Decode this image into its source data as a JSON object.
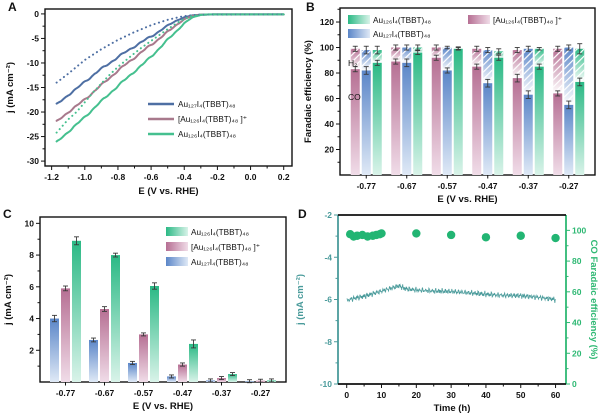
{
  "palette": {
    "blue_line": "#4e6fa3",
    "mauve_line": "#a8798c",
    "green_line": "#45c08f",
    "blue_bar": "#5b86c8",
    "blue_bar_light": "#dfe9f6",
    "mauve_bar": "#b66f93",
    "mauve_bar_light": "#f0dce8",
    "green_bar": "#2bb985",
    "green_bar_light": "#d9f3e9",
    "teal": "#4a9b9b",
    "dot_green": "#22b573",
    "right_axis_green": "#2eb873",
    "axis": "#111111",
    "error_bar": "#3a3a3a"
  },
  "chart_data": [
    {
      "panel": "A",
      "type": "line",
      "xlabel": "E (V vs. RHE)",
      "ylabel": "j (mA cm⁻²)",
      "xlim": [
        -1.24,
        0.25
      ],
      "ylim": [
        -31,
        1
      ],
      "xticks": [
        -1.2,
        -1.0,
        -0.8,
        -0.6,
        -0.4,
        -0.2,
        0.0,
        0.2
      ],
      "yticks": [
        0,
        -5,
        -10,
        -15,
        -20,
        -25,
        -30
      ],
      "legend_position": "lower right",
      "series": [
        {
          "name": "Au₁₂₇I₄(TBBT)₄₈",
          "color": "blue_line",
          "style": "solid",
          "legend": true,
          "points": [
            [
              -1.17,
              -18.5
            ],
            [
              -1.1,
              -16.5
            ],
            [
              -1.05,
              -15.3
            ],
            [
              -1.0,
              -13.8
            ],
            [
              -0.95,
              -12.5
            ],
            [
              -0.9,
              -11.2
            ],
            [
              -0.85,
              -10.0
            ],
            [
              -0.8,
              -8.8
            ],
            [
              -0.75,
              -7.7
            ],
            [
              -0.7,
              -6.6
            ],
            [
              -0.65,
              -5.6
            ],
            [
              -0.6,
              -4.6
            ],
            [
              -0.55,
              -3.5
            ],
            [
              -0.5,
              -2.4
            ],
            [
              -0.45,
              -1.4
            ],
            [
              -0.4,
              -0.7
            ],
            [
              -0.35,
              -0.3
            ],
            [
              -0.3,
              -0.15
            ],
            [
              -0.2,
              -0.1
            ],
            [
              0.2,
              -0.1
            ]
          ]
        },
        {
          "name": "[Au₁₂₆I₄(TBBT)₄₈ ]⁺",
          "color": "mauve_line",
          "style": "solid",
          "legend": true,
          "points": [
            [
              -1.17,
              -22.0
            ],
            [
              -1.1,
              -20.0
            ],
            [
              -1.05,
              -18.8
            ],
            [
              -1.0,
              -17.4
            ],
            [
              -0.95,
              -16.0
            ],
            [
              -0.9,
              -14.5
            ],
            [
              -0.85,
              -13.0
            ],
            [
              -0.8,
              -11.6
            ],
            [
              -0.75,
              -10.2
            ],
            [
              -0.7,
              -8.9
            ],
            [
              -0.65,
              -7.6
            ],
            [
              -0.6,
              -6.3
            ],
            [
              -0.55,
              -5.0
            ],
            [
              -0.5,
              -3.7
            ],
            [
              -0.45,
              -2.3
            ],
            [
              -0.4,
              -1.1
            ],
            [
              -0.35,
              -0.4
            ],
            [
              -0.3,
              -0.15
            ],
            [
              -0.2,
              -0.1
            ],
            [
              0.2,
              -0.1
            ]
          ]
        },
        {
          "name": "Au₁₂₆I₄(TBBT)₄₈",
          "color": "green_line",
          "style": "solid",
          "legend": true,
          "points": [
            [
              -1.17,
              -26.2
            ],
            [
              -1.1,
              -24.0
            ],
            [
              -1.05,
              -22.6
            ],
            [
              -1.0,
              -21.0
            ],
            [
              -0.95,
              -19.4
            ],
            [
              -0.9,
              -17.8
            ],
            [
              -0.85,
              -16.2
            ],
            [
              -0.8,
              -14.7
            ],
            [
              -0.75,
              -13.2
            ],
            [
              -0.7,
              -11.7
            ],
            [
              -0.65,
              -10.3
            ],
            [
              -0.6,
              -8.7
            ],
            [
              -0.55,
              -7.0
            ],
            [
              -0.5,
              -5.3
            ],
            [
              -0.45,
              -3.6
            ],
            [
              -0.4,
              -1.9
            ],
            [
              -0.35,
              -0.7
            ],
            [
              -0.3,
              -0.2
            ],
            [
              -0.25,
              -0.1
            ],
            [
              0.2,
              -0.1
            ]
          ]
        },
        {
          "name": "Au₁₂₇I₄(TBBT)₄₈ dotted",
          "color": "blue_line",
          "style": "dotted",
          "legend": false,
          "points": [
            [
              -1.17,
              -14.0
            ],
            [
              -1.1,
              -12.2
            ],
            [
              -1.0,
              -9.4
            ],
            [
              -0.9,
              -7.2
            ],
            [
              -0.8,
              -5.3
            ],
            [
              -0.7,
              -3.7
            ],
            [
              -0.6,
              -2.3
            ],
            [
              -0.5,
              -1.2
            ],
            [
              -0.45,
              -0.8
            ],
            [
              -0.4,
              -0.45
            ],
            [
              -0.35,
              -0.25
            ],
            [
              -0.3,
              -0.15
            ],
            [
              0.2,
              -0.1
            ]
          ]
        },
        {
          "name": "Au₁₂₆I₄(TBBT)₄₈ dotted",
          "color": "green_line",
          "style": "dotted",
          "legend": false,
          "points": [
            [
              -1.17,
              -24.2
            ],
            [
              -1.1,
              -21.5
            ],
            [
              -1.05,
              -20.0
            ],
            [
              -1.0,
              -18.0
            ],
            [
              -0.95,
              -16.0
            ],
            [
              -0.9,
              -14.2
            ],
            [
              -0.85,
              -12.4
            ],
            [
              -0.8,
              -10.8
            ],
            [
              -0.75,
              -9.4
            ],
            [
              -0.7,
              -8.0
            ],
            [
              -0.65,
              -6.7
            ],
            [
              -0.6,
              -5.5
            ],
            [
              -0.55,
              -4.3
            ],
            [
              -0.5,
              -3.1
            ],
            [
              -0.45,
              -2.0
            ],
            [
              -0.4,
              -1.0
            ],
            [
              -0.35,
              -0.4
            ],
            [
              -0.3,
              -0.15
            ],
            [
              0.2,
              -0.1
            ]
          ]
        }
      ]
    },
    {
      "panel": "B",
      "type": "stacked_bar",
      "xlabel": "E (V vs. RHE)",
      "ylabel": "Faradaic efficiency (%)",
      "categories": [
        "-0.77",
        "-0.67",
        "-0.57",
        "-0.47",
        "-0.37",
        "-0.27"
      ],
      "ylim": [
        0,
        131
      ],
      "yticks": [
        20,
        40,
        60,
        80,
        100,
        120
      ],
      "annotations": [
        {
          "text": "H₂",
          "value": 88
        },
        {
          "text": "CO",
          "value": 61
        }
      ],
      "bar_order": [
        "mauve",
        "blue",
        "green"
      ],
      "series": [
        {
          "name": "[Au₁₂₆I₄(TBBT)₄₈ ]⁺",
          "key": "mauve",
          "co": [
            83,
            89,
            92,
            85,
            76,
            64
          ],
          "co_err": [
            2,
            2,
            2,
            2,
            3,
            2
          ],
          "total": [
            99,
            100,
            100,
            99,
            98,
            99
          ],
          "total_err": [
            2,
            2,
            2,
            2,
            2,
            2
          ]
        },
        {
          "name": "Au₁₂₇I₄(TBBT)₄₈",
          "key": "blue",
          "co": [
            82,
            88,
            82,
            72,
            63,
            55
          ],
          "co_err": [
            3,
            3,
            2,
            3,
            3,
            3
          ],
          "total": [
            98,
            100,
            100,
            98,
            99,
            100
          ],
          "total_err": [
            3,
            2,
            1,
            2,
            2,
            2
          ]
        },
        {
          "name": "Au₁₂₆I₄(TBBT)₄₈",
          "key": "green",
          "co": [
            88,
            96,
            99,
            92,
            85,
            73
          ],
          "co_err": [
            2,
            1.5,
            1,
            2,
            2,
            3
          ],
          "total": [
            98,
            100,
            99.5,
            97,
            99,
            99
          ],
          "total_err": [
            3,
            2,
            1,
            2,
            1,
            4
          ]
        }
      ],
      "legend": [
        {
          "name": "Au₁₂₆I₄(TBBT)₄₈",
          "key": "green",
          "row": 0,
          "col": 0
        },
        {
          "name": "[Au₁₂₆I₄(TBBT)₄₈ ]⁺",
          "key": "mauve",
          "row": 0,
          "col": 1
        },
        {
          "name": "Au₁₂₇I₄(TBBT)₄₈",
          "key": "blue",
          "row": 1,
          "col": 0
        }
      ]
    },
    {
      "panel": "C",
      "type": "grouped_bar",
      "xlabel": "E (V vs. RHE)",
      "ylabel": "j (mA cm⁻²)",
      "categories": [
        "-0.77",
        "-0.67",
        "-0.57",
        "-0.47",
        "-0.37",
        "-0.27"
      ],
      "ylim": [
        0,
        10.4
      ],
      "yticks": [
        2,
        4,
        6,
        8,
        10
      ],
      "bar_order": [
        "blue",
        "mauve",
        "green"
      ],
      "series": [
        {
          "name": "Au₁₂₇I₄(TBBT)₄₈",
          "key": "blue",
          "values": [
            4.0,
            2.65,
            1.2,
            0.35,
            0.1,
            0.05
          ],
          "errors": [
            0.2,
            0.12,
            0.1,
            0.06,
            0.04,
            0.03
          ]
        },
        {
          "name": "[Au₁₂₆I₄(TBBT)₄₈ ]⁺",
          "key": "mauve",
          "values": [
            5.9,
            4.6,
            3.0,
            1.1,
            0.25,
            0.08
          ],
          "errors": [
            0.15,
            0.15,
            0.08,
            0.1,
            0.05,
            0.03
          ]
        },
        {
          "name": "Au₁₂₆I₄(TBBT)₄₈",
          "key": "green",
          "values": [
            8.9,
            8.0,
            6.05,
            2.4,
            0.5,
            0.1
          ],
          "errors": [
            0.25,
            0.12,
            0.2,
            0.25,
            0.08,
            0.04
          ]
        }
      ],
      "legend": [
        {
          "name": "Au₁₂₆I₄(TBBT)₄₈",
          "key": "green"
        },
        {
          "name": "[Au₁₂₆I₄(TBBT)₄₈ ]⁺",
          "key": "mauve"
        },
        {
          "name": "Au₁₂₇I₄(TBBT)₄₈",
          "key": "blue"
        }
      ]
    },
    {
      "panel": "D",
      "type": "dual_axis",
      "xlabel": "Time (h)",
      "ylabel_left": "j (mA cm⁻²)",
      "ylabel_right": "CO Faradaic efficiency (%)",
      "xlim": [
        -2.5,
        63
      ],
      "xticks": [
        0,
        10,
        20,
        30,
        40,
        50,
        60
      ],
      "ylim_left": [
        -10,
        -2
      ],
      "yticks_left": [
        -10,
        -8,
        -6,
        -4,
        -2
      ],
      "ylim_right": [
        0,
        110
      ],
      "yticks_right": [
        0,
        20,
        40,
        60,
        80,
        100
      ],
      "j_anchors": [
        [
          0,
          -6.05
        ],
        [
          2,
          -5.95
        ],
        [
          5,
          -5.85
        ],
        [
          8,
          -5.7
        ],
        [
          10,
          -5.6
        ],
        [
          13,
          -5.45
        ],
        [
          15,
          -5.35
        ],
        [
          17,
          -5.5
        ],
        [
          20,
          -5.55
        ],
        [
          25,
          -5.6
        ],
        [
          30,
          -5.62
        ],
        [
          35,
          -5.68
        ],
        [
          40,
          -5.75
        ],
        [
          45,
          -5.8
        ],
        [
          50,
          -5.82
        ],
        [
          55,
          -5.9
        ],
        [
          60,
          -6.0
        ]
      ],
      "fe_points": [
        [
          1,
          97.5
        ],
        [
          2,
          96
        ],
        [
          3,
          96.5
        ],
        [
          4.5,
          97
        ],
        [
          6,
          96
        ],
        [
          7.5,
          96.5
        ],
        [
          8.5,
          97
        ],
        [
          9.5,
          97.5
        ],
        [
          10,
          98
        ],
        [
          20,
          98
        ],
        [
          30,
          97
        ],
        [
          40,
          95.5
        ],
        [
          50,
          96.5
        ],
        [
          60,
          95
        ]
      ]
    }
  ]
}
